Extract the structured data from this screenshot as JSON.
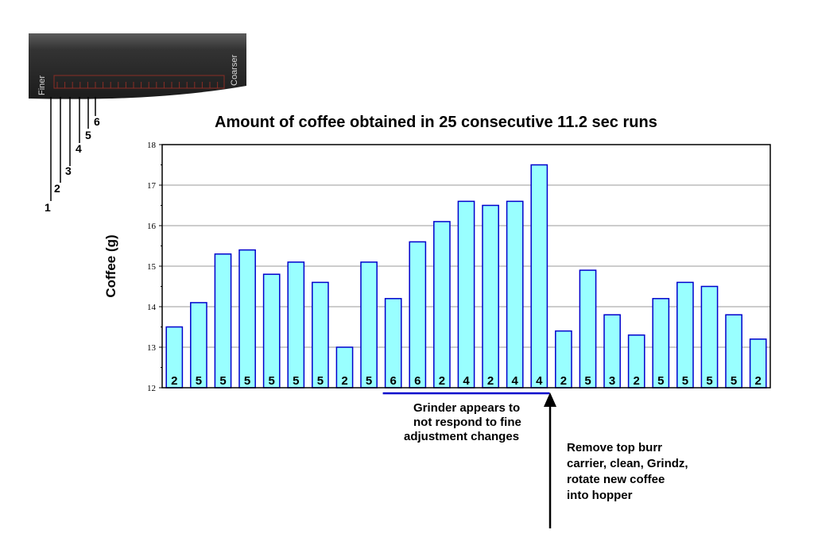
{
  "chart_data": {
    "type": "bar",
    "title": "Amount of coffee obtained in 25 consecutive 11.2 sec runs",
    "ylabel": "Coffee (g)",
    "xlabel": "",
    "ylim": [
      12,
      18
    ],
    "yticks": [
      "12",
      "13",
      "14",
      "15",
      "16",
      "17",
      "18"
    ],
    "grid": true,
    "bar_color": "#99ffff",
    "bar_edge_color": "#0000cc",
    "values": [
      13.5,
      14.1,
      15.3,
      15.4,
      14.8,
      15.1,
      14.6,
      13.0,
      15.1,
      14.2,
      15.6,
      16.1,
      16.6,
      16.5,
      16.6,
      17.5,
      13.4,
      14.9,
      13.8,
      13.3,
      14.2,
      14.6,
      14.5,
      13.8,
      13.2
    ],
    "bar_labels": [
      "2",
      "5",
      "5",
      "5",
      "5",
      "5",
      "5",
      "2",
      "5",
      "6",
      "6",
      "2",
      "4",
      "2",
      "4",
      "4",
      "2",
      "5",
      "3",
      "2",
      "5",
      "5",
      "5",
      "5",
      "2"
    ],
    "annotations": {
      "grinder_note": [
        "Grinder appears to",
        "not respond to fine",
        "adjustment changes"
      ],
      "grinder_note_span": {
        "from_run": 10,
        "to_run": 16
      },
      "grinder_line_color": "#0000cc",
      "burr_note": [
        "Remove top burr",
        "carrier, clean, Grindz,",
        "rotate new coffee",
        "into hopper"
      ],
      "burr_note_after_run": 16
    }
  },
  "dial": {
    "finer_label": "Finer",
    "coarser_label": "Coarser",
    "settings": [
      "1",
      "2",
      "3",
      "4",
      "5",
      "6"
    ]
  }
}
